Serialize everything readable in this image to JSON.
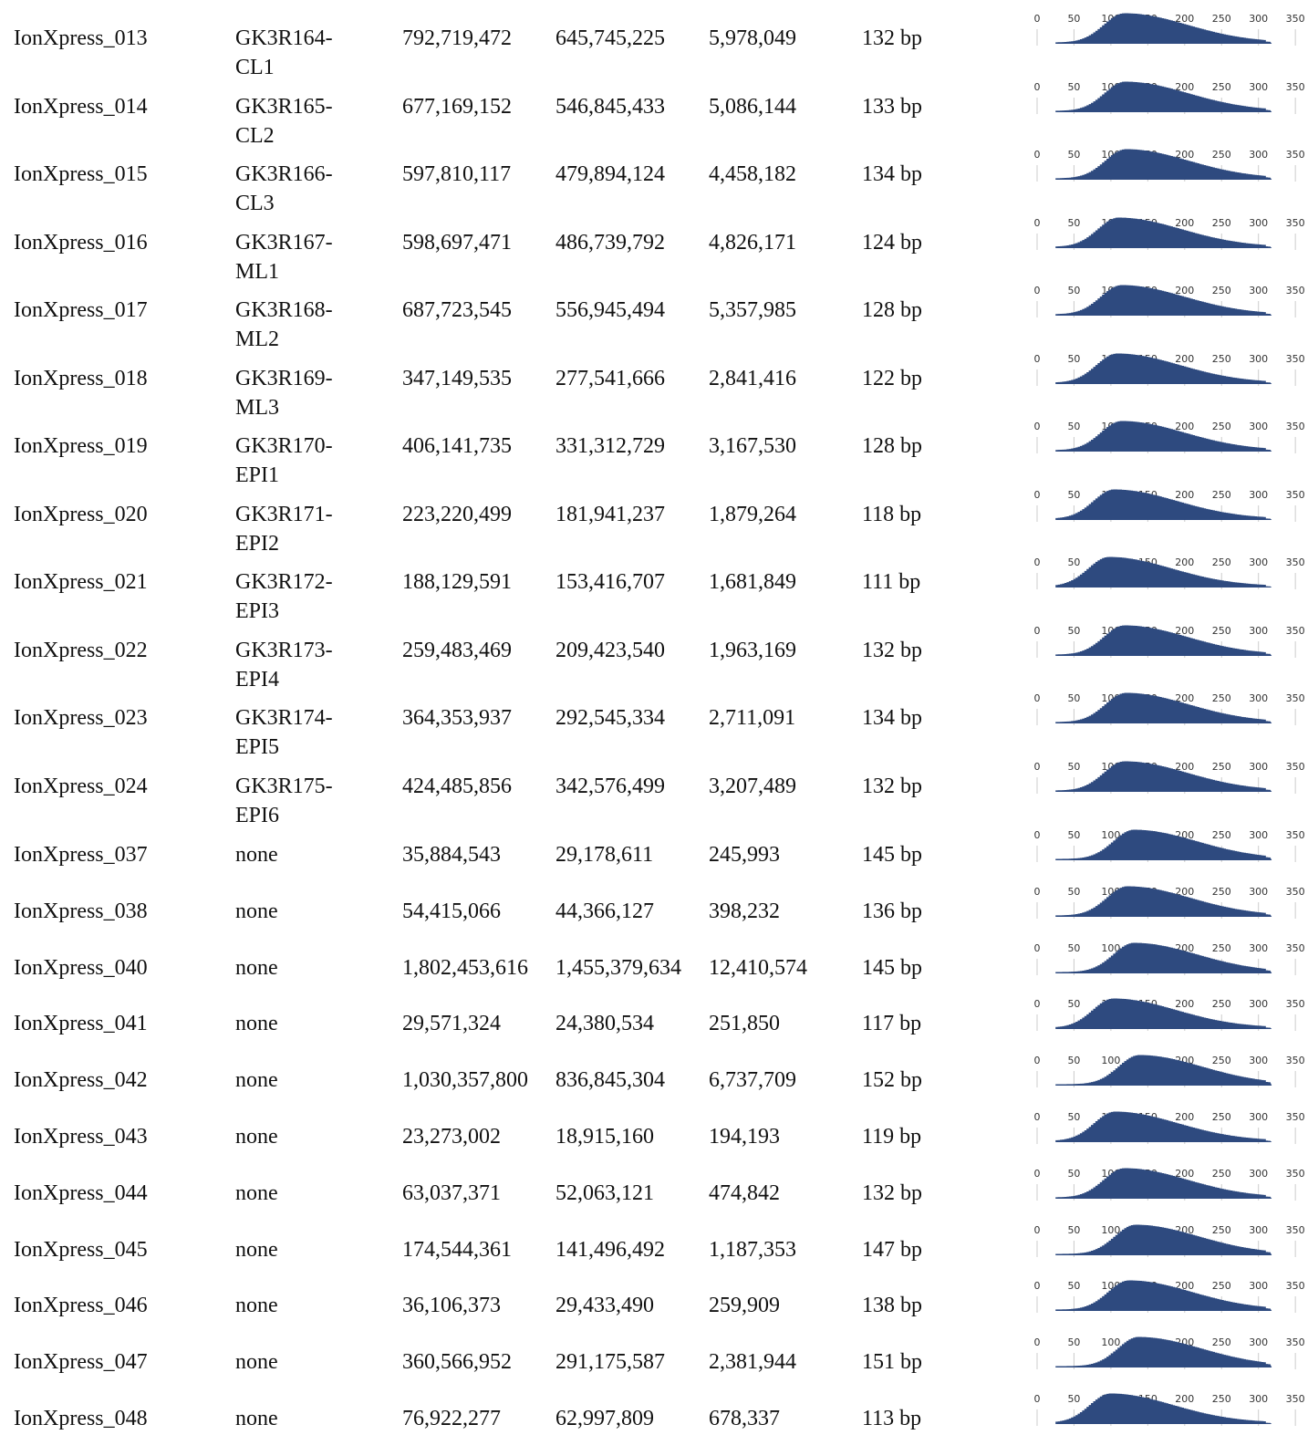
{
  "table": {
    "rows": [
      [
        "IonXpress_013",
        "GK3R164-CL1",
        "792,719,472",
        "645,745,225",
        "5,978,049",
        "132 bp"
      ],
      [
        "IonXpress_014",
        "GK3R165-CL2",
        "677,169,152",
        "546,845,433",
        "5,086,144",
        "133 bp"
      ],
      [
        "IonXpress_015",
        "GK3R166-CL3",
        "597,810,117",
        "479,894,124",
        "4,458,182",
        "134 bp"
      ],
      [
        "IonXpress_016",
        "GK3R167-ML1",
        "598,697,471",
        "486,739,792",
        "4,826,171",
        "124 bp"
      ],
      [
        "IonXpress_017",
        "GK3R168-ML2",
        "687,723,545",
        "556,945,494",
        "5,357,985",
        "128 bp"
      ],
      [
        "IonXpress_018",
        "GK3R169-ML3",
        "347,149,535",
        "277,541,666",
        "2,841,416",
        "122 bp"
      ],
      [
        "IonXpress_019",
        "GK3R170-EPI1",
        "406,141,735",
        "331,312,729",
        "3,167,530",
        "128 bp"
      ],
      [
        "IonXpress_020",
        "GK3R171-EPI2",
        "223,220,499",
        "181,941,237",
        "1,879,264",
        "118 bp"
      ],
      [
        "IonXpress_021",
        "GK3R172-EPI3",
        "188,129,591",
        "153,416,707",
        "1,681,849",
        "111 bp"
      ],
      [
        "IonXpress_022",
        "GK3R173-EPI4",
        "259,483,469",
        "209,423,540",
        "1,963,169",
        "132 bp"
      ],
      [
        "IonXpress_023",
        "GK3R174-EPI5",
        "364,353,937",
        "292,545,334",
        "2,711,091",
        "134 bp"
      ],
      [
        "IonXpress_024",
        "GK3R175-EPI6",
        "424,485,856",
        "342,576,499",
        "3,207,489",
        "132 bp"
      ],
      [
        "IonXpress_037",
        "none",
        "35,884,543",
        "29,178,611",
        "245,993",
        "145 bp"
      ],
      [
        "IonXpress_038",
        "none",
        "54,415,066",
        "44,366,127",
        "398,232",
        "136 bp"
      ],
      [
        "IonXpress_040",
        "none",
        "1,802,453,616",
        "1,455,379,634",
        "12,410,574",
        "145 bp"
      ],
      [
        "IonXpress_041",
        "none",
        "29,571,324",
        "24,380,534",
        "251,850",
        "117 bp"
      ],
      [
        "IonXpress_042",
        "none",
        "1,030,357,800",
        "836,845,304",
        "6,737,709",
        "152 bp"
      ],
      [
        "IonXpress_043",
        "none",
        "23,273,002",
        "18,915,160",
        "194,193",
        "119 bp"
      ],
      [
        "IonXpress_044",
        "none",
        "63,037,371",
        "52,063,121",
        "474,842",
        "132 bp"
      ],
      [
        "IonXpress_045",
        "none",
        "174,544,361",
        "141,496,492",
        "1,187,353",
        "147 bp"
      ],
      [
        "IonXpress_046",
        "none",
        "36,106,373",
        "29,433,490",
        "259,909",
        "138 bp"
      ],
      [
        "IonXpress_047",
        "none",
        "360,566,952",
        "291,175,587",
        "2,381,944",
        "151 bp"
      ],
      [
        "IonXpress_048",
        "none",
        "76,922,277",
        "62,997,809",
        "678,337",
        "113 bp"
      ]
    ]
  },
  "histogram_ticks": [
    0,
    50,
    100,
    150,
    200,
    250,
    300,
    350
  ]
}
